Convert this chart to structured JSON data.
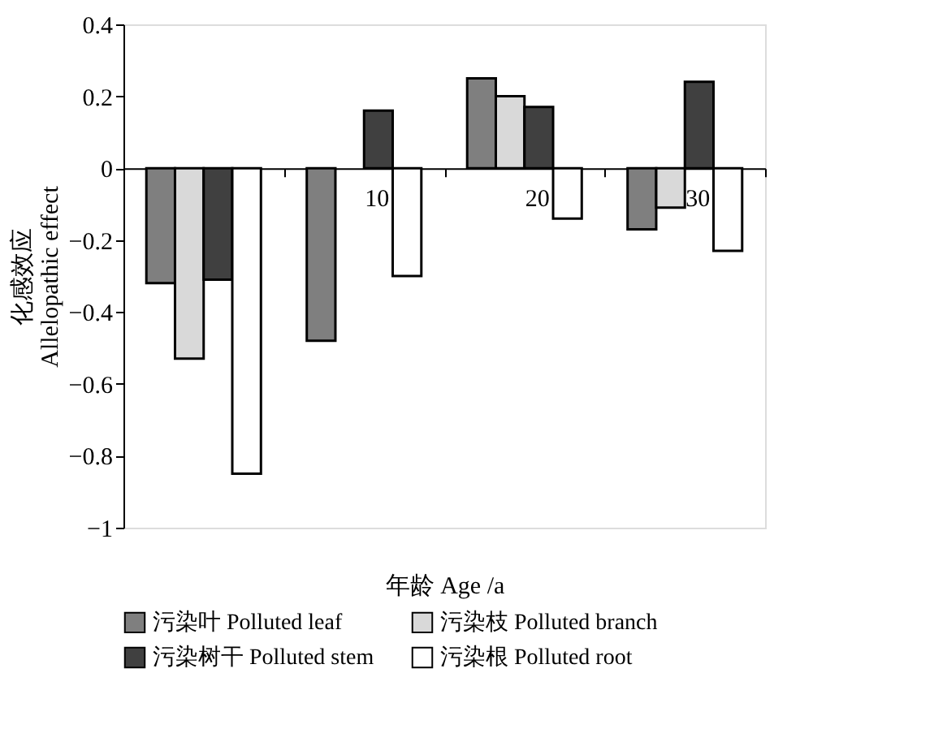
{
  "chart_data": {
    "type": "bar",
    "xlabel": "年龄 Age /a",
    "ylabel": "化感效应\nAllelopathic effect",
    "categories": [
      null,
      "10",
      "20",
      "30"
    ],
    "series": [
      {
        "name": "污染叶 Polluted leaf",
        "color": "#7f7f7f",
        "values": [
          -0.32,
          -0.48,
          0.25,
          -0.17
        ]
      },
      {
        "name": "污染枝 Polluted branch",
        "color": "#d9d9d9",
        "values": [
          -0.53,
          null,
          0.2,
          -0.11
        ]
      },
      {
        "name": "污染树干 Polluted stem",
        "color": "#404040",
        "values": [
          -0.31,
          0.16,
          0.17,
          0.24
        ]
      },
      {
        "name": "污染根 Polluted root",
        "color": "#ffffff",
        "values": [
          -0.85,
          -0.3,
          -0.14,
          -0.23
        ]
      }
    ],
    "ylim": [
      -1,
      0.4
    ],
    "yticks": [
      0.4,
      0.2,
      0,
      -0.2,
      -0.4,
      -0.6,
      -0.8,
      -1
    ],
    "grid": false,
    "legend": "bottom"
  }
}
